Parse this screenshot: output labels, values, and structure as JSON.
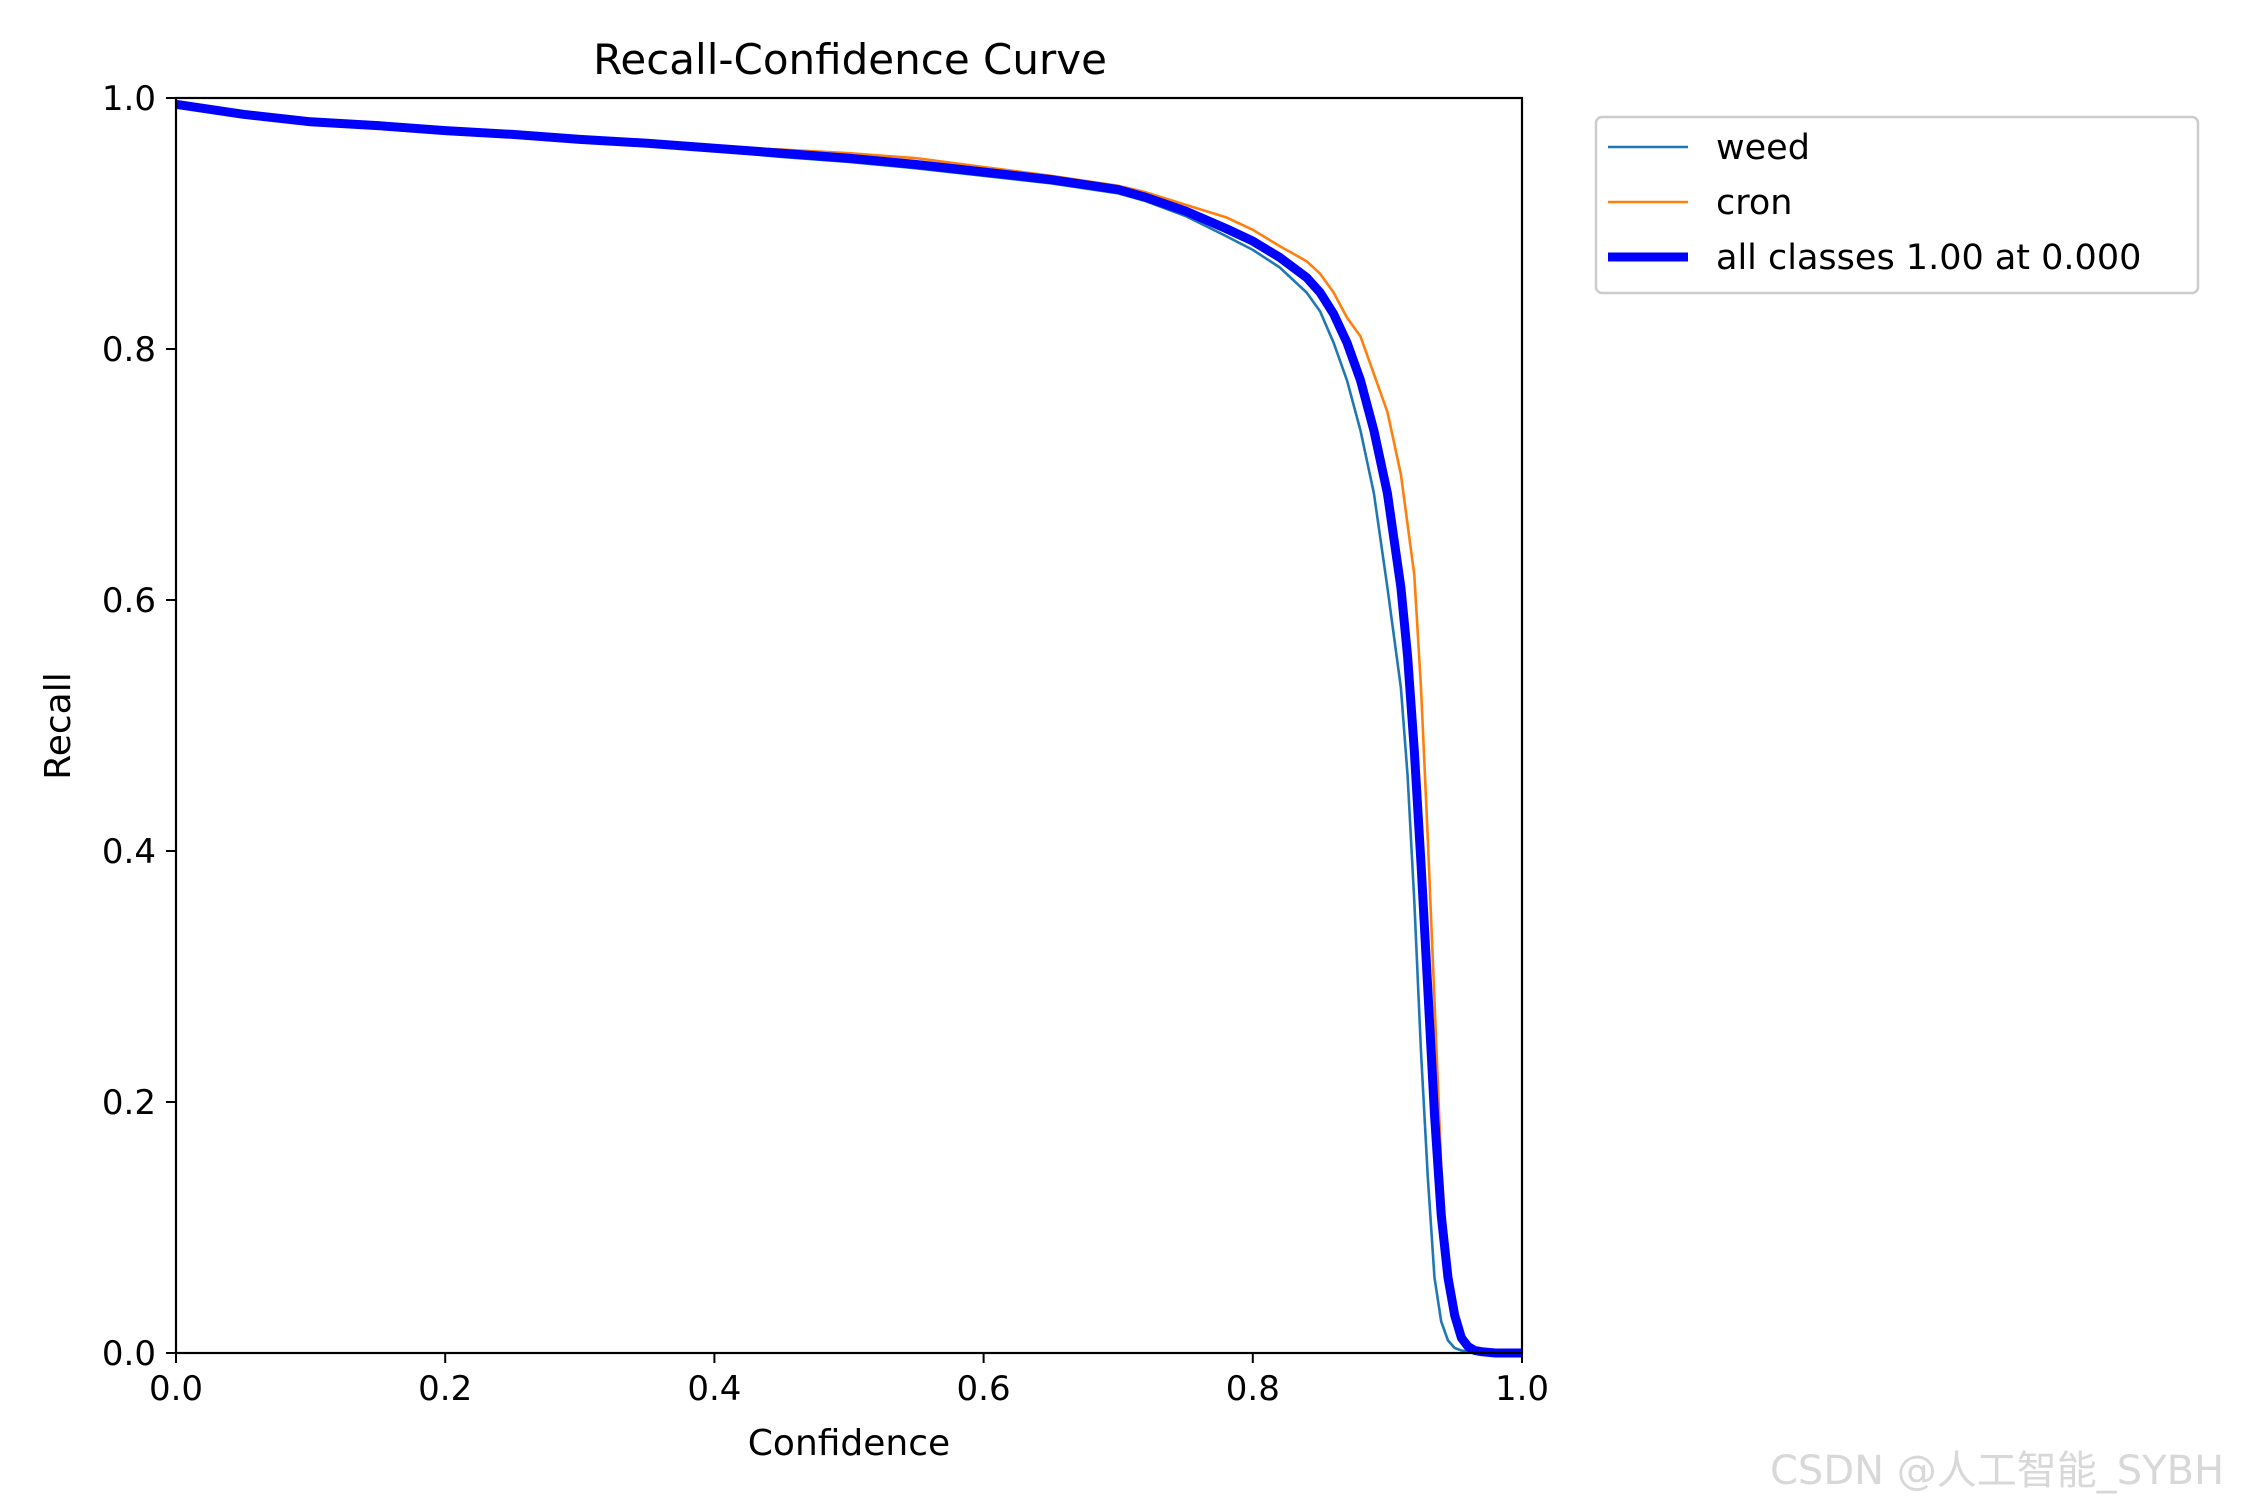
{
  "chart_data": {
    "type": "line",
    "title": "Recall-Confidence Curve",
    "xlabel": "Confidence",
    "ylabel": "Recall",
    "xlim": [
      0,
      1
    ],
    "ylim": [
      0,
      1
    ],
    "xticks": [
      "0.0",
      "0.2",
      "0.4",
      "0.6",
      "0.8",
      "1.0"
    ],
    "yticks": [
      "0.0",
      "0.2",
      "0.4",
      "0.6",
      "0.8",
      "1.0"
    ],
    "grid": false,
    "legend_position": "outside-top-right",
    "series": [
      {
        "name": "weed",
        "color": "#1f77b4",
        "style": "thin",
        "x": [
          0.0,
          0.05,
          0.1,
          0.15,
          0.2,
          0.25,
          0.3,
          0.35,
          0.4,
          0.45,
          0.5,
          0.55,
          0.6,
          0.65,
          0.7,
          0.72,
          0.75,
          0.78,
          0.8,
          0.82,
          0.84,
          0.85,
          0.86,
          0.87,
          0.88,
          0.89,
          0.9,
          0.91,
          0.915,
          0.92,
          0.925,
          0.93,
          0.935,
          0.94,
          0.945,
          0.95,
          0.955,
          0.96,
          0.97,
          1.0
        ],
        "y": [
          0.995,
          0.987,
          0.981,
          0.978,
          0.974,
          0.971,
          0.967,
          0.963,
          0.958,
          0.953,
          0.949,
          0.944,
          0.938,
          0.932,
          0.924,
          0.918,
          0.906,
          0.89,
          0.879,
          0.865,
          0.845,
          0.83,
          0.805,
          0.775,
          0.735,
          0.685,
          0.61,
          0.53,
          0.46,
          0.36,
          0.24,
          0.14,
          0.06,
          0.025,
          0.01,
          0.004,
          0.002,
          0.001,
          0.0,
          0.0
        ]
      },
      {
        "name": "cron",
        "color": "#ff7f0e",
        "style": "thin",
        "x": [
          0.0,
          0.05,
          0.1,
          0.15,
          0.2,
          0.25,
          0.3,
          0.35,
          0.4,
          0.45,
          0.5,
          0.55,
          0.6,
          0.65,
          0.7,
          0.72,
          0.75,
          0.78,
          0.8,
          0.82,
          0.84,
          0.85,
          0.86,
          0.87,
          0.88,
          0.89,
          0.9,
          0.91,
          0.92,
          0.925,
          0.93,
          0.935,
          0.94,
          0.945,
          0.95,
          0.955,
          0.96,
          0.965,
          0.97,
          0.98,
          1.0
        ],
        "y": [
          0.995,
          0.987,
          0.981,
          0.978,
          0.974,
          0.971,
          0.967,
          0.964,
          0.961,
          0.959,
          0.956,
          0.952,
          0.945,
          0.938,
          0.93,
          0.925,
          0.915,
          0.905,
          0.895,
          0.882,
          0.87,
          0.86,
          0.845,
          0.825,
          0.81,
          0.78,
          0.75,
          0.7,
          0.62,
          0.53,
          0.41,
          0.28,
          0.15,
          0.07,
          0.03,
          0.012,
          0.004,
          0.002,
          0.001,
          0.0,
          0.0
        ]
      },
      {
        "name": "all classes 1.00 at 0.000",
        "color": "#0000ff",
        "style": "thick",
        "x": [
          0.0,
          0.05,
          0.1,
          0.15,
          0.2,
          0.25,
          0.3,
          0.35,
          0.4,
          0.45,
          0.5,
          0.55,
          0.6,
          0.65,
          0.7,
          0.72,
          0.75,
          0.78,
          0.8,
          0.82,
          0.84,
          0.85,
          0.86,
          0.87,
          0.88,
          0.89,
          0.9,
          0.91,
          0.915,
          0.92,
          0.925,
          0.93,
          0.935,
          0.94,
          0.945,
          0.95,
          0.955,
          0.96,
          0.965,
          0.97,
          0.98,
          0.99,
          1.0
        ],
        "y": [
          0.995,
          0.987,
          0.981,
          0.978,
          0.974,
          0.971,
          0.967,
          0.964,
          0.96,
          0.956,
          0.952,
          0.947,
          0.941,
          0.935,
          0.927,
          0.921,
          0.91,
          0.896,
          0.886,
          0.873,
          0.857,
          0.845,
          0.828,
          0.805,
          0.775,
          0.735,
          0.685,
          0.61,
          0.555,
          0.48,
          0.39,
          0.29,
          0.19,
          0.11,
          0.06,
          0.03,
          0.012,
          0.005,
          0.002,
          0.001,
          0.0,
          0.0,
          0.0
        ]
      }
    ]
  },
  "watermark": "CSDN @人工智能_SYBH"
}
